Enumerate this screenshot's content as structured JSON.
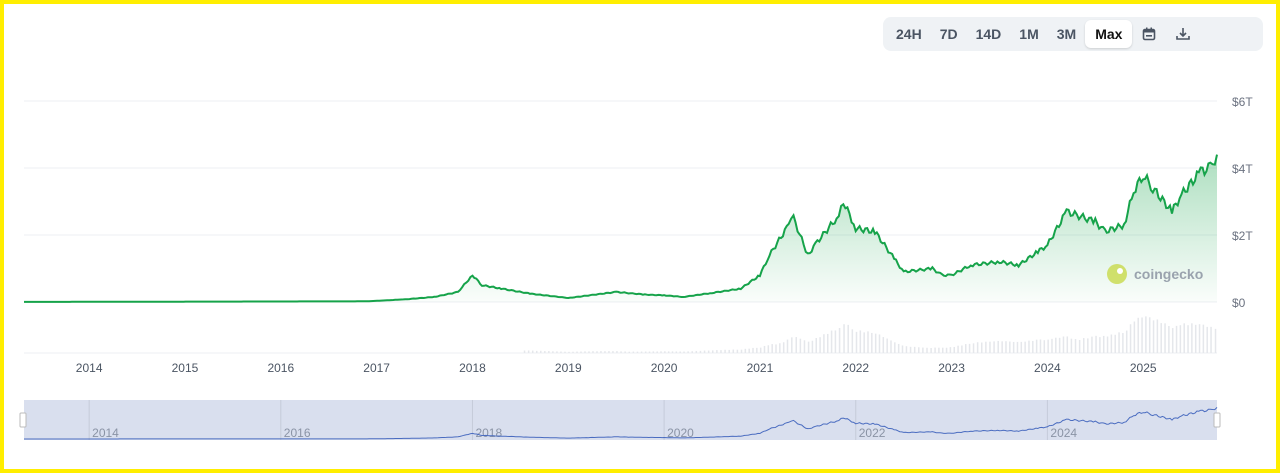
{
  "toolbar": {
    "ranges": [
      "24H",
      "7D",
      "14D",
      "1M",
      "3M",
      "Max"
    ],
    "active": "Max",
    "calendar_icon": "calendar-icon",
    "download_icon": "download-icon"
  },
  "logo": {
    "text": "coingecko"
  },
  "colors": {
    "line": "#16a34a",
    "navigator_bg": "#d9dfee",
    "navigator_line": "#4a6cc0"
  },
  "chart_data": {
    "type": "area",
    "ylabel": "",
    "xlabel": "",
    "y_ticks": [
      "$0",
      "$2T",
      "$4T",
      "$6T"
    ],
    "y_tick_values": [
      0,
      2,
      4,
      6
    ],
    "ylim": [
      0,
      6
    ],
    "x_ticks": [
      "2014",
      "2015",
      "2016",
      "2017",
      "2018",
      "2019",
      "2020",
      "2021",
      "2022",
      "2023",
      "2024",
      "2025"
    ],
    "xlim": [
      2013.32,
      2025.77
    ],
    "navigator_ticks": [
      "2014",
      "2016",
      "2018",
      "2020",
      "2022",
      "2024"
    ],
    "grid": true,
    "series": [
      {
        "unit": "trillion USD",
        "x": [
          2013.32,
          2016.9,
          2017.3,
          2017.6,
          2017.85,
          2018.0,
          2018.1,
          2018.3,
          2018.6,
          2019.0,
          2019.5,
          2019.8,
          2020.0,
          2020.2,
          2020.5,
          2020.8,
          2021.0,
          2021.1,
          2021.3,
          2021.35,
          2021.5,
          2021.6,
          2021.8,
          2021.87,
          2022.0,
          2022.2,
          2022.4,
          2022.5,
          2022.8,
          2022.9,
          2023.0,
          2023.2,
          2023.5,
          2023.7,
          2023.9,
          2024.0,
          2024.2,
          2024.5,
          2024.6,
          2024.8,
          2024.9,
          2025.0,
          2025.1,
          2025.3,
          2025.4,
          2025.6,
          2025.7,
          2025.77
        ],
        "y": [
          0.002,
          0.02,
          0.08,
          0.15,
          0.3,
          0.8,
          0.5,
          0.4,
          0.25,
          0.12,
          0.3,
          0.22,
          0.2,
          0.15,
          0.27,
          0.4,
          0.8,
          1.4,
          2.3,
          2.5,
          1.4,
          1.8,
          2.5,
          3.0,
          2.2,
          2.1,
          1.3,
          0.9,
          1.0,
          0.8,
          0.8,
          1.1,
          1.2,
          1.1,
          1.5,
          1.7,
          2.7,
          2.4,
          2.1,
          2.3,
          3.3,
          3.8,
          3.4,
          2.7,
          3.2,
          3.9,
          4.0,
          4.4
        ]
      }
    ]
  }
}
